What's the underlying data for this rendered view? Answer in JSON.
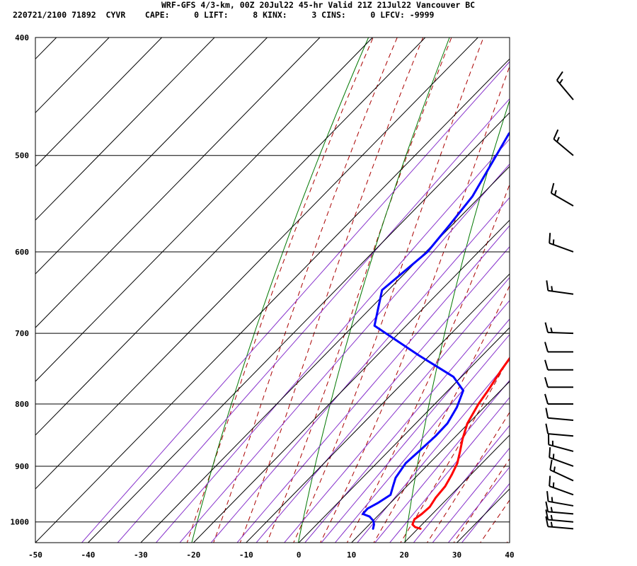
{
  "header": {
    "line1": "WRF-GFS 4/3-km, 00Z 20Jul22 45-hr Valid 21Z 21Jul22 Vancouver BC",
    "line2": "220721/2100 71892  CYVR    CAPE:     0 LIFT:     8 KINX:     3 CINS:     0 LFCV: -9999"
  },
  "chart_data": {
    "type": "line",
    "title": "WRF-GFS 4/3-km, 00Z 20Jul22 45-hr Valid 21Z 21Jul22 Vancouver BC",
    "xlabel": "",
    "ylabel": "",
    "xlim": [
      -50,
      40
    ],
    "ylim": [
      1040,
      400
    ],
    "y_scale": "log",
    "x_ticks": [
      "-50",
      "-40",
      "-30",
      "-20",
      "-10",
      "0",
      "10",
      "20",
      "30",
      "40"
    ],
    "y_ticks": [
      "400",
      "500",
      "600",
      "700",
      "800",
      "900",
      "1000"
    ],
    "grid": true,
    "series": [
      {
        "role": "temperature",
        "color": "#ff0000",
        "points": [
          [
            1013,
            20.5
          ],
          [
            1010,
            19.2
          ],
          [
            1005,
            18.2
          ],
          [
            995,
            17.6
          ],
          [
            985,
            18.0
          ],
          [
            972,
            18.2
          ],
          [
            955,
            17.6
          ],
          [
            935,
            17.3
          ],
          [
            915,
            16.4
          ],
          [
            895,
            15.3
          ],
          [
            875,
            13.6
          ],
          [
            855,
            11.8
          ],
          [
            830,
            9.8
          ],
          [
            800,
            8.3
          ],
          [
            780,
            7.6
          ],
          [
            750,
            6.3
          ],
          [
            725,
            5.4
          ],
          [
            700,
            4.5
          ],
          [
            670,
            3.2
          ],
          [
            640,
            1.6
          ],
          [
            615,
            0.0
          ],
          [
            600,
            -1.3
          ],
          [
            550,
            -5.5
          ],
          [
            500,
            -10.8
          ],
          [
            460,
            -15.6
          ],
          [
            415,
            -21.6
          ]
        ]
      },
      {
        "role": "dewpoint",
        "color": "#0000ff",
        "points": [
          [
            1013,
            11.5
          ],
          [
            1005,
            10.9
          ],
          [
            998,
            10.1
          ],
          [
            990,
            8.6
          ],
          [
            985,
            6.8
          ],
          [
            975,
            6.7
          ],
          [
            965,
            7.6
          ],
          [
            950,
            8.5
          ],
          [
            935,
            7.4
          ],
          [
            920,
            6.3
          ],
          [
            895,
            5.5
          ],
          [
            875,
            5.8
          ],
          [
            850,
            6.1
          ],
          [
            830,
            6.0
          ],
          [
            805,
            4.8
          ],
          [
            780,
            2.9
          ],
          [
            760,
            -1.5
          ],
          [
            730,
            -12
          ],
          [
            690,
            -26
          ],
          [
            645,
            -31.2
          ],
          [
            600,
            -29.7
          ],
          [
            570,
            -30.5
          ],
          [
            540,
            -31.5
          ],
          [
            480,
            -36.2
          ],
          [
            460,
            -36.3
          ],
          [
            420,
            -36.3
          ]
        ]
      }
    ],
    "wind_barbs": [
      {
        "pressure": 1013,
        "direction": 275,
        "speed_kt": 15
      },
      {
        "pressure": 1000,
        "direction": 275,
        "speed_kt": 15
      },
      {
        "pressure": 985,
        "direction": 275,
        "speed_kt": 15
      },
      {
        "pressure": 970,
        "direction": 280,
        "speed_kt": 15
      },
      {
        "pressure": 950,
        "direction": 290,
        "speed_kt": 15
      },
      {
        "pressure": 925,
        "direction": 295,
        "speed_kt": 15
      },
      {
        "pressure": 900,
        "direction": 290,
        "speed_kt": 15
      },
      {
        "pressure": 875,
        "direction": 285,
        "speed_kt": 15
      },
      {
        "pressure": 850,
        "direction": 275,
        "speed_kt": 10
      },
      {
        "pressure": 825,
        "direction": 275,
        "speed_kt": 10
      },
      {
        "pressure": 800,
        "direction": 270,
        "speed_kt": 10
      },
      {
        "pressure": 775,
        "direction": 270,
        "speed_kt": 10
      },
      {
        "pressure": 750,
        "direction": 270,
        "speed_kt": 10
      },
      {
        "pressure": 725,
        "direction": 270,
        "speed_kt": 10
      },
      {
        "pressure": 700,
        "direction": 272,
        "speed_kt": 15
      },
      {
        "pressure": 650,
        "direction": 278,
        "speed_kt": 15
      },
      {
        "pressure": 600,
        "direction": 290,
        "speed_kt": 15
      },
      {
        "pressure": 550,
        "direction": 300,
        "speed_kt": 15
      },
      {
        "pressure": 500,
        "direction": 310,
        "speed_kt": 15
      },
      {
        "pressure": 450,
        "direction": 320,
        "speed_kt": 15
      }
    ]
  },
  "colors": {
    "isotherm": "#000000",
    "dry_adiabat": "#007700",
    "moist_adiabat": "#aa0000",
    "mixing_ratio": "#8833cc",
    "barb": "#000000"
  }
}
